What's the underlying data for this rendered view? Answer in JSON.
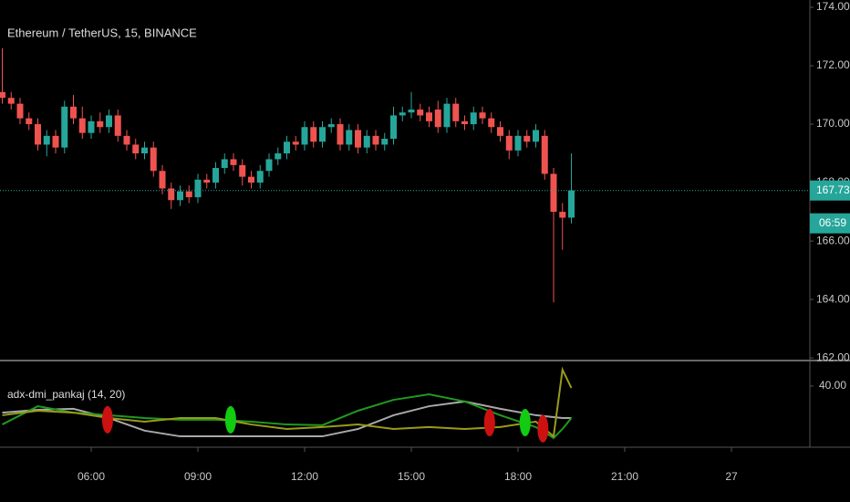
{
  "chart_data": [
    {
      "type": "candlestick",
      "title": "Ethereum / TetherUS, 15, BINANCE",
      "x": [
        3.5,
        3.75,
        4,
        4.25,
        4.5,
        4.75,
        5,
        5.25,
        5.5,
        5.75,
        6,
        6.25,
        6.5,
        6.75,
        7,
        7.25,
        7.5,
        7.75,
        8,
        8.25,
        8.5,
        8.75,
        9,
        9.25,
        9.5,
        9.75,
        10,
        10.25,
        10.5,
        10.75,
        11,
        11.25,
        11.5,
        11.75,
        12,
        12.25,
        12.5,
        12.75,
        13,
        13.25,
        13.5,
        13.75,
        14,
        14.25,
        14.5,
        14.75,
        15,
        15.25,
        15.5,
        15.75,
        16,
        16.25,
        16.5,
        16.75,
        17,
        17.25,
        17.5,
        17.75,
        18,
        18.25,
        18.5,
        18.75,
        19,
        19.25,
        19.5
      ],
      "open": [
        171.1,
        170.9,
        170.7,
        170.2,
        170.0,
        169.3,
        169.6,
        169.2,
        170.6,
        170.2,
        169.7,
        170.1,
        169.9,
        170.3,
        169.6,
        169.3,
        169.0,
        169.2,
        168.4,
        167.8,
        167.4,
        167.7,
        167.5,
        168.1,
        168.0,
        168.5,
        168.8,
        168.6,
        168.2,
        168.0,
        168.4,
        168.8,
        169.0,
        169.4,
        169.3,
        169.9,
        169.4,
        169.9,
        170.0,
        169.3,
        169.8,
        169.2,
        169.6,
        169.3,
        169.5,
        170.3,
        170.4,
        170.5,
        170.4,
        170.5,
        169.9,
        170.7,
        170.1,
        170.0,
        170.4,
        170.2,
        169.9,
        169.6,
        169.1,
        169.6,
        169.4,
        169.6,
        168.3,
        167.0,
        166.8
      ],
      "high": [
        172.6,
        171.1,
        170.9,
        170.4,
        170.2,
        169.8,
        169.8,
        170.8,
        171.0,
        170.6,
        170.3,
        170.4,
        170.5,
        170.5,
        169.8,
        169.5,
        169.4,
        169.4,
        168.6,
        168.0,
        167.9,
        167.9,
        168.3,
        168.3,
        168.7,
        169.0,
        169.0,
        168.8,
        168.4,
        168.6,
        169.0,
        169.2,
        169.6,
        169.6,
        170.1,
        170.1,
        170.1,
        170.2,
        170.2,
        170.0,
        170.0,
        169.8,
        169.8,
        169.7,
        170.6,
        170.6,
        171.1,
        170.7,
        170.6,
        170.8,
        170.9,
        170.9,
        170.3,
        170.6,
        170.6,
        170.4,
        170.1,
        169.8,
        169.8,
        169.8,
        170.0,
        169.8,
        168.5,
        167.3,
        169.0
      ],
      "low": [
        170.7,
        170.5,
        170.0,
        169.8,
        169.1,
        168.9,
        169.0,
        169.0,
        170.0,
        169.5,
        169.5,
        169.7,
        169.7,
        169.4,
        169.1,
        168.8,
        168.8,
        168.2,
        167.6,
        167.1,
        167.2,
        167.3,
        167.3,
        167.8,
        167.8,
        168.3,
        168.4,
        167.9,
        167.8,
        167.8,
        168.2,
        168.6,
        168.8,
        169.1,
        169.1,
        169.2,
        169.2,
        169.7,
        169.1,
        169.1,
        169.0,
        169.0,
        169.1,
        169.1,
        169.3,
        170.1,
        170.2,
        170.1,
        169.9,
        169.7,
        169.7,
        169.9,
        169.8,
        169.8,
        170.0,
        169.7,
        169.4,
        168.8,
        168.9,
        169.2,
        169.2,
        168.1,
        163.9,
        165.7,
        166.6
      ],
      "close": [
        170.9,
        170.7,
        170.2,
        170.0,
        169.3,
        169.6,
        169.2,
        170.6,
        170.2,
        169.7,
        170.1,
        169.9,
        170.3,
        169.6,
        169.3,
        169.0,
        169.2,
        168.4,
        167.8,
        167.4,
        167.7,
        167.5,
        168.1,
        168.0,
        168.5,
        168.8,
        168.6,
        168.2,
        168.0,
        168.4,
        168.8,
        169.0,
        169.4,
        169.3,
        169.9,
        169.4,
        169.9,
        170.0,
        169.3,
        169.8,
        169.2,
        169.6,
        169.3,
        169.5,
        170.3,
        170.4,
        170.5,
        170.3,
        170.1,
        169.9,
        170.7,
        170.1,
        170.0,
        170.4,
        170.2,
        169.9,
        169.6,
        169.1,
        169.6,
        169.4,
        169.8,
        168.3,
        167.0,
        166.8,
        167.73
      ],
      "up_color": "#26a69a",
      "down_color": "#ef5350",
      "xlim": [
        3.436,
        26.205
      ],
      "xticks": [
        {
          "value": 6,
          "label": "06:00"
        },
        {
          "value": 9,
          "label": "09:00"
        },
        {
          "value": 12,
          "label": "12:00"
        },
        {
          "value": 15,
          "label": "15:00"
        },
        {
          "value": 18,
          "label": "18:00"
        },
        {
          "value": 21,
          "label": "21:00"
        },
        {
          "value": 24,
          "label": "27"
        }
      ],
      "ylim": [
        161.91,
        174.25
      ],
      "yticks": [
        {
          "value": 162,
          "label": "162.00"
        },
        {
          "value": 164,
          "label": "164.00"
        },
        {
          "value": 166,
          "label": "166.00"
        },
        {
          "value": 168,
          "label": "168.00"
        },
        {
          "value": 170,
          "label": "170.00"
        },
        {
          "value": 172,
          "label": "172.00"
        },
        {
          "value": 174,
          "label": "174.00"
        }
      ],
      "last_price": 167.73,
      "countdown": "06:59"
    },
    {
      "type": "line",
      "title": "adx-dmi_pankaj (14, 20)",
      "x": [
        3.5,
        4.5,
        5.5,
        6.5,
        7.5,
        8.5,
        9.5,
        10.5,
        11.5,
        12.5,
        13.5,
        14.5,
        15.5,
        16.5,
        17.5,
        18.5,
        19.0,
        19.25,
        19.5
      ],
      "series": [
        {
          "color": "#a8a8a8",
          "values": [
            28.8,
            30.0,
            30.4,
            26.5,
            21.2,
            18.8,
            18.8,
            18.8,
            18.8,
            18.8,
            21.9,
            27.7,
            31.5,
            33.5,
            30.4,
            27.7,
            26.9,
            26.5,
            26.5
          ]
        },
        {
          "color": "#1f9a1f",
          "values": [
            23.8,
            31.5,
            28.8,
            27.7,
            26.5,
            25.8,
            25.8,
            25.0,
            23.8,
            23.5,
            29.6,
            34.2,
            36.5,
            33.5,
            27.7,
            22.7,
            18.1,
            21.9,
            26.5
          ]
        },
        {
          "color": "#9a9a1a",
          "values": [
            27.7,
            29.6,
            28.8,
            26.5,
            25.0,
            26.5,
            26.5,
            23.8,
            21.9,
            22.7,
            23.8,
            21.9,
            22.7,
            21.9,
            22.7,
            25.0,
            18.8,
            46.9,
            39.2
          ]
        }
      ],
      "signals": {
        "x": [
          6.46,
          9.92,
          17.2,
          18.2,
          18.7
        ],
        "values": [
          25.8,
          25.8,
          24.6,
          24.6,
          22.0
        ],
        "colors": [
          "#cc1111",
          "#11cc11",
          "#cc1111",
          "#11cc11",
          "#cc1111"
        ]
      },
      "ylim": [
        14.2,
        50
      ],
      "yticks": [
        {
          "value": 40,
          "label": "40.00"
        }
      ]
    }
  ]
}
